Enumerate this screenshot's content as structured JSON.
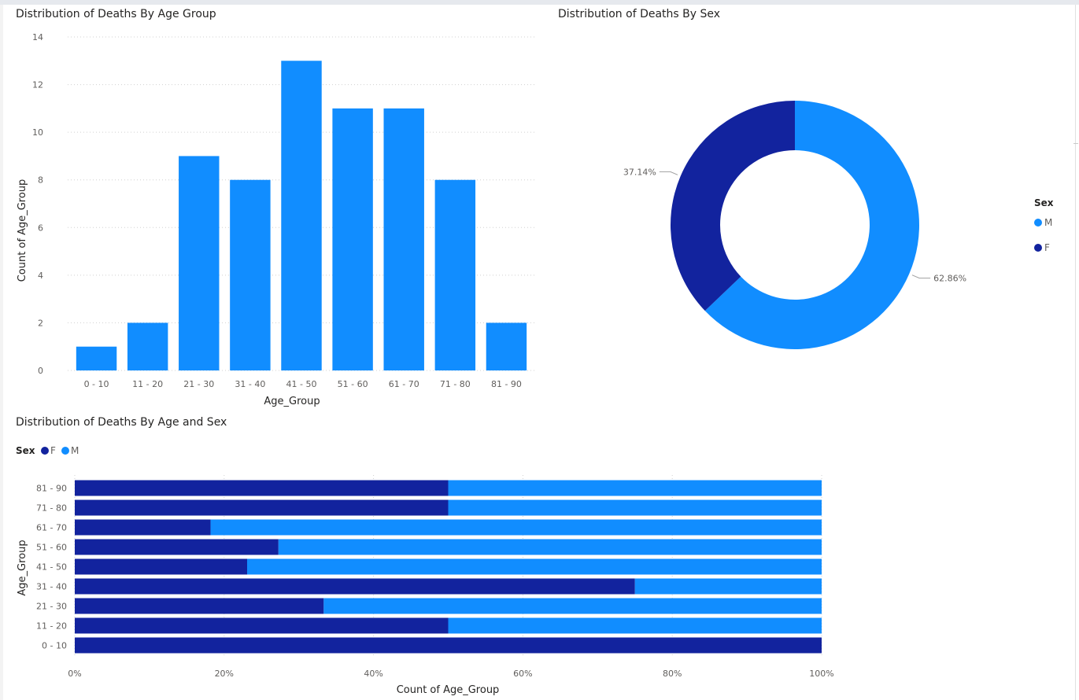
{
  "colors": {
    "m": "#118dff",
    "f": "#12239e",
    "grid": "#d0d0d0",
    "axis_text": "#605e5c",
    "title_text": "#252423"
  },
  "chart_data": [
    {
      "id": "age",
      "type": "bar",
      "title": "Distribution of Deaths By Age Group",
      "xlabel": "Age_Group",
      "ylabel": "Count of Age_Group",
      "categories": [
        "0 - 10",
        "11 - 20",
        "21 - 30",
        "31 - 40",
        "41 - 50",
        "51 - 60",
        "61 - 70",
        "71 - 80",
        "81 - 90"
      ],
      "values": [
        1,
        2,
        9,
        8,
        13,
        11,
        11,
        8,
        2
      ],
      "ylim": [
        0,
        14
      ],
      "yticks": [
        0,
        2,
        4,
        6,
        8,
        10,
        12,
        14
      ],
      "grid": true
    },
    {
      "id": "sex",
      "type": "pie",
      "donut": true,
      "title": "Distribution of Deaths By Sex",
      "legend_title": "Sex",
      "legend_position": "right",
      "slices": [
        {
          "name": "M",
          "value": 62.86,
          "label": "62.86%"
        },
        {
          "name": "F",
          "value": 37.14,
          "label": "37.14%"
        }
      ]
    },
    {
      "id": "agesex",
      "type": "bar",
      "orientation": "horizontal",
      "stacked": "100%",
      "title": "Distribution of Deaths By Age and Sex",
      "xlabel": "Count of Age_Group",
      "ylabel": "Age_Group",
      "legend_title": "Sex",
      "legend_position": "top-left",
      "categories": [
        "81 - 90",
        "71 - 80",
        "61 - 70",
        "51 - 60",
        "41 - 50",
        "31 - 40",
        "21 - 30",
        "11 - 20",
        "0 - 10"
      ],
      "series": [
        {
          "name": "F",
          "values": [
            1,
            4,
            2,
            3,
            3,
            6,
            3,
            1,
            1
          ]
        },
        {
          "name": "M",
          "values": [
            1,
            4,
            9,
            8,
            10,
            2,
            6,
            1,
            0
          ]
        }
      ],
      "xticks": [
        "0%",
        "20%",
        "40%",
        "60%",
        "80%",
        "100%"
      ],
      "grid": true
    }
  ]
}
